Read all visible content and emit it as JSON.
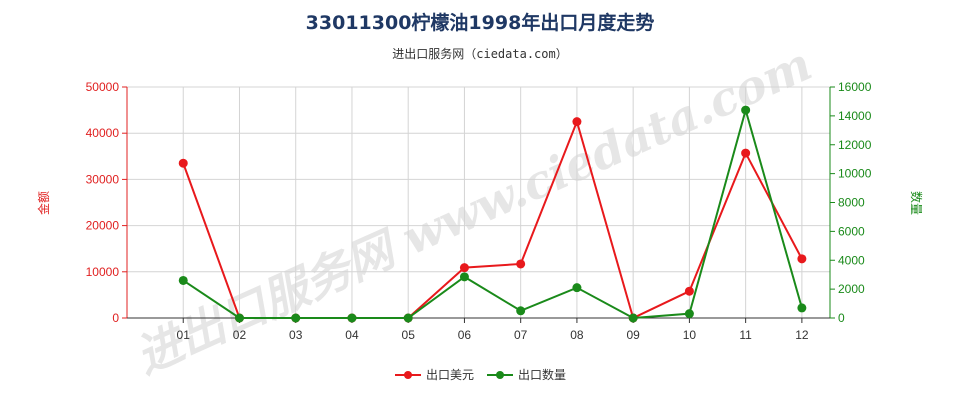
{
  "chart_data": {
    "type": "line",
    "title": "33011300柠檬油1998年出口月度走势",
    "subtitle": "进出口服务网（ciedata.com）",
    "watermark": "进出口服务网 www.ciedata.com",
    "categories": [
      "01",
      "02",
      "03",
      "04",
      "05",
      "06",
      "07",
      "08",
      "09",
      "10",
      "11",
      "12"
    ],
    "ylabel_left": "金额",
    "ylabel_right": "数量",
    "ylim_left": [
      0,
      50000
    ],
    "ylim_right": [
      0,
      16000
    ],
    "yticks_left": [
      0,
      10000,
      20000,
      30000,
      40000,
      50000
    ],
    "yticks_right": [
      0,
      2000,
      4000,
      6000,
      8000,
      10000,
      12000,
      14000,
      16000
    ],
    "grid": true,
    "legend_position": "bottom",
    "series": [
      {
        "name": "出口美元",
        "axis": "left",
        "color": "#e8191c",
        "values": [
          33500,
          0,
          0,
          0,
          0,
          10900,
          11700,
          42500,
          0,
          5800,
          35700,
          12800
        ]
      },
      {
        "name": "出口数量",
        "axis": "right",
        "color": "#1a8a1a",
        "values": [
          2600,
          0,
          0,
          0,
          0,
          2850,
          500,
          2100,
          0,
          300,
          14400,
          700
        ]
      }
    ]
  }
}
